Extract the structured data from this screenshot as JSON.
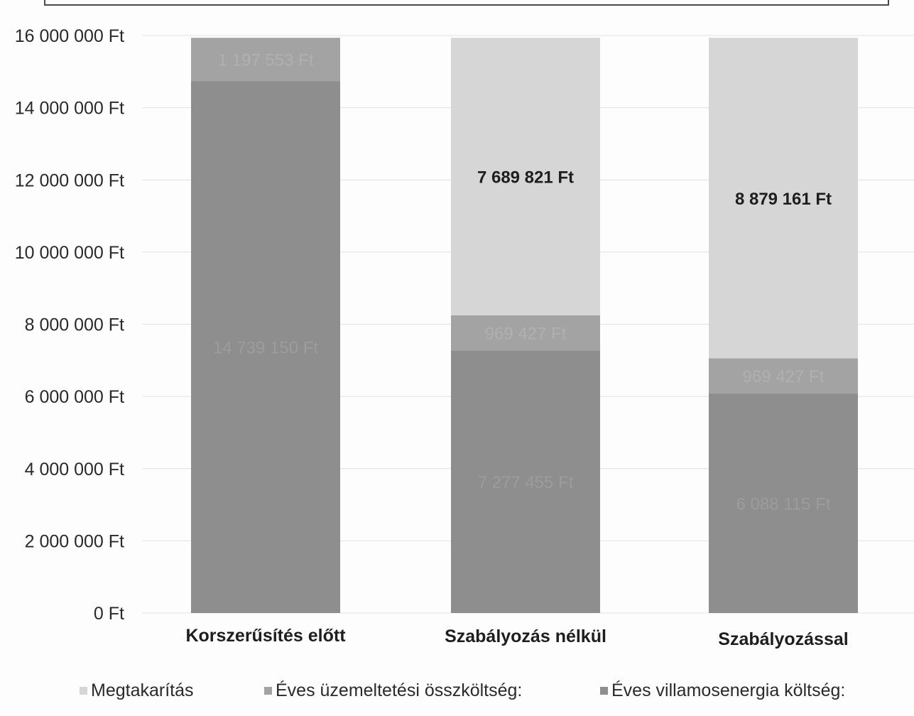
{
  "chart_data": {
    "type": "bar",
    "stacked": true,
    "categories": [
      "Korszerűsítés előtt",
      "Szabályozás nélkül",
      "Szabályozással"
    ],
    "series": [
      {
        "name": "Éves villamosenergia költség:",
        "values": [
          14739150,
          7277455,
          6088115
        ],
        "labels": [
          "14 739 150 Ft",
          "7 277 455 Ft",
          "6 088 115 Ft"
        ],
        "color": "#8e8e8e",
        "label_color": "#9c9c9c"
      },
      {
        "name": "Éves üzemeltetési összköltség:",
        "values": [
          1197553,
          969427,
          969427
        ],
        "labels": [
          "1 197 553 Ft",
          "969 427 Ft",
          "969 427 Ft"
        ],
        "color": "#a3a3a3",
        "label_color": "#b0b0b0"
      },
      {
        "name": "Megtakarítás",
        "values": [
          0,
          7689821,
          8879161
        ],
        "labels": [
          "",
          "7 689 821 Ft",
          "8 879 161 Ft"
        ],
        "color": "#d6d6d6",
        "label_color": "#1e1e1e"
      }
    ],
    "ylim": [
      0,
      16000000
    ],
    "yticks": [
      0,
      2000000,
      4000000,
      6000000,
      8000000,
      10000000,
      12000000,
      14000000,
      16000000
    ],
    "ytick_labels": [
      "0 Ft",
      "2 000 000 Ft",
      "4 000 000 Ft",
      "6 000 000 Ft",
      "8 000 000 Ft",
      "10 000 000 Ft",
      "12 000 000 Ft",
      "14 000 000 Ft",
      "16 000 000 Ft"
    ],
    "grid": true,
    "legend_position": "bottom",
    "legend_order": [
      "Megtakarítás",
      "Éves üzemeltetési összköltség:",
      "Éves villamosenergia költség:"
    ]
  }
}
